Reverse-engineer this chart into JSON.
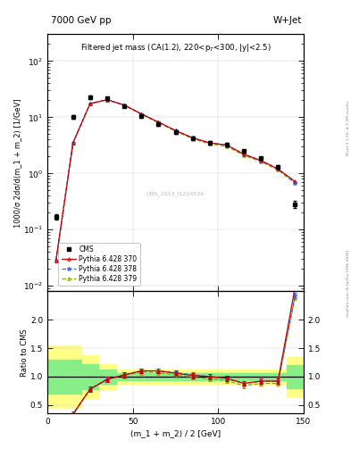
{
  "title_top": "7000 GeV pp",
  "title_right": "W+Jet",
  "plot_title": "Filtered jet mass (CA(1.2), 220<p$_T$<300, |y|<2.5)",
  "ylabel_main": "1000/σ 2dσ/d(m_1 + m_2) [1/GeV]",
  "ylabel_ratio": "Ratio to CMS",
  "xlabel": "(m_1 + m_2) / 2 [GeV]",
  "watermark": "CMS_2013_I1224539",
  "right_label": "mcplots.cern.ch [arXiv:1306.3436]",
  "right_label2": "Rivet 3.1.10, ≥ 2.5M events",
  "cms_x": [
    5,
    15,
    25,
    35,
    45,
    55,
    65,
    75,
    85,
    95,
    105,
    115,
    125,
    135,
    145
  ],
  "cms_y": [
    0.17,
    10.2,
    22.5,
    21.5,
    16.0,
    10.5,
    7.5,
    5.5,
    4.2,
    3.5,
    3.3,
    2.5,
    1.85,
    1.3,
    0.28
  ],
  "cms_yerr": [
    0.02,
    0.8,
    1.5,
    1.5,
    1.0,
    0.7,
    0.5,
    0.35,
    0.28,
    0.22,
    0.22,
    0.16,
    0.12,
    0.09,
    0.04
  ],
  "py370_x": [
    5,
    15,
    25,
    35,
    45,
    55,
    65,
    75,
    85,
    95,
    105,
    115,
    125,
    135,
    145
  ],
  "py370_y": [
    0.028,
    3.5,
    17.5,
    20.5,
    16.5,
    11.5,
    8.2,
    5.8,
    4.3,
    3.5,
    3.2,
    2.2,
    1.7,
    1.2,
    0.72
  ],
  "py378_x": [
    5,
    15,
    25,
    35,
    45,
    55,
    65,
    75,
    85,
    95,
    105,
    115,
    125,
    135,
    145
  ],
  "py378_y": [
    0.028,
    3.5,
    17.5,
    20.5,
    16.5,
    11.5,
    8.2,
    5.8,
    4.3,
    3.5,
    3.2,
    2.2,
    1.7,
    1.2,
    0.68
  ],
  "py379_x": [
    5,
    15,
    25,
    35,
    45,
    55,
    65,
    75,
    85,
    95,
    105,
    115,
    125,
    135,
    145
  ],
  "py379_y": [
    0.028,
    3.5,
    17.5,
    20.5,
    16.3,
    11.3,
    8.0,
    5.65,
    4.15,
    3.35,
    3.05,
    2.1,
    1.62,
    1.15,
    0.67
  ],
  "ratio370_x": [
    5,
    15,
    25,
    35,
    45,
    55,
    65,
    75,
    85,
    95,
    105,
    115,
    125,
    135,
    145
  ],
  "ratio370_y": [
    0.165,
    0.34,
    0.78,
    0.95,
    1.03,
    1.1,
    1.1,
    1.06,
    1.02,
    1.0,
    0.97,
    0.88,
    0.92,
    0.92,
    2.57
  ],
  "ratio378_x": [
    5,
    15,
    25,
    35,
    45,
    55,
    65,
    75,
    85,
    95,
    105,
    115,
    125,
    135,
    145
  ],
  "ratio378_y": [
    0.165,
    0.34,
    0.78,
    0.955,
    1.03,
    1.1,
    1.1,
    1.07,
    1.03,
    1.0,
    0.97,
    0.88,
    0.92,
    0.92,
    2.43
  ],
  "ratio379_x": [
    5,
    15,
    25,
    35,
    45,
    55,
    65,
    75,
    85,
    95,
    105,
    115,
    125,
    135,
    145
  ],
  "ratio379_y": [
    0.165,
    0.34,
    0.78,
    0.955,
    1.02,
    1.08,
    1.07,
    1.03,
    0.99,
    0.96,
    0.93,
    0.84,
    0.88,
    0.88,
    2.39
  ],
  "band_yellow_edges": [
    0,
    10,
    20,
    30,
    40,
    50,
    140,
    150
  ],
  "band_yellow_low": [
    0.45,
    0.45,
    0.62,
    0.78,
    0.87,
    0.87,
    0.65,
    0.65
  ],
  "band_yellow_high": [
    1.55,
    1.55,
    1.38,
    1.22,
    1.13,
    1.13,
    1.35,
    1.35
  ],
  "band_green_edges": [
    0,
    10,
    20,
    30,
    40,
    50,
    140,
    150
  ],
  "band_green_low": [
    0.7,
    0.7,
    0.78,
    0.88,
    0.94,
    0.94,
    0.8,
    0.8
  ],
  "band_green_high": [
    1.3,
    1.3,
    1.22,
    1.12,
    1.06,
    1.06,
    1.2,
    1.2
  ],
  "color_370": "#cc0000",
  "color_378": "#3366ff",
  "color_379": "#88aa00",
  "color_cms": "black",
  "xlim": [
    0,
    150
  ],
  "ylim_main": [
    0.008,
    300
  ],
  "ylim_ratio": [
    0.35,
    2.5
  ],
  "ratio_yticks": [
    0.5,
    1.0,
    1.5,
    2.0
  ]
}
